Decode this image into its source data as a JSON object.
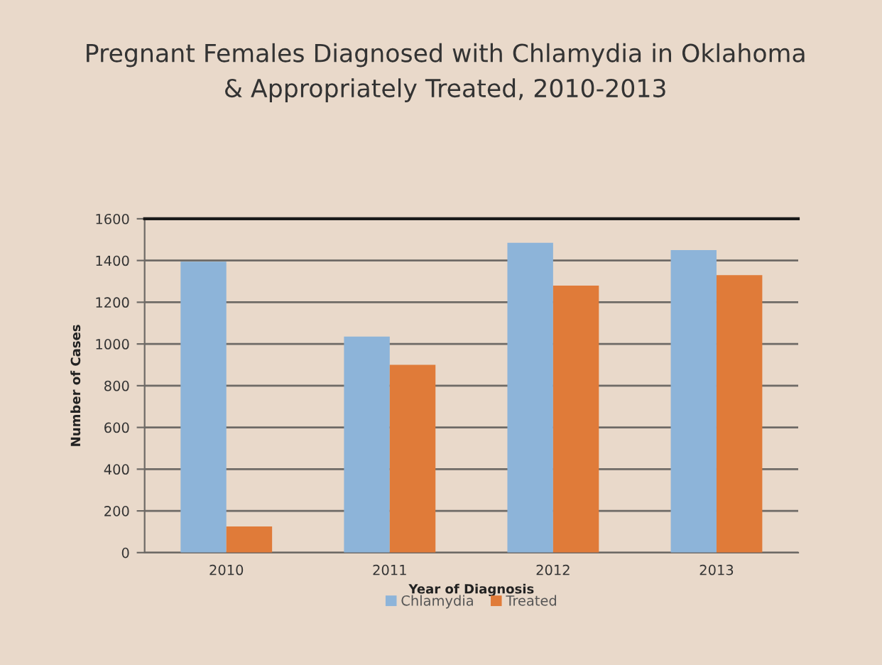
{
  "chart_data": {
    "type": "bar",
    "title": "Pregnant Females Diagnosed with Chlamydia in Oklahoma\n& Appropriately Treated, 2010-2013",
    "xlabel": "Year of Diagnosis",
    "ylabel": "Number of Cases",
    "categories": [
      "2010",
      "2011",
      "2012",
      "2013"
    ],
    "series": [
      {
        "name": "Chlamydia",
        "color": "#8db4d9",
        "values": [
          1395,
          1035,
          1485,
          1450
        ]
      },
      {
        "name": "Treated",
        "color": "#e07b39",
        "values": [
          125,
          900,
          1280,
          1330
        ]
      }
    ],
    "ylim": [
      0,
      1600
    ],
    "yticks": [
      0,
      200,
      400,
      600,
      800,
      1000,
      1200,
      1400,
      1600
    ],
    "grid": "y",
    "legend": "bottom"
  }
}
